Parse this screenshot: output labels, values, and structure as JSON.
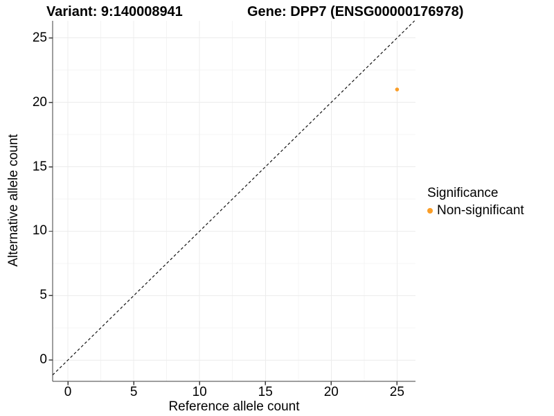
{
  "chart_data": {
    "type": "scatter",
    "title_left": "Variant: 9:140008941",
    "title_right": "Gene: DPP7 (ENSG00000176978)",
    "xlabel": "Reference allele count",
    "ylabel": "Alternative allele count",
    "xlim": [
      -1.16,
      26.4
    ],
    "ylim": [
      -1.65,
      26.33
    ],
    "x_ticks": [
      0,
      5,
      10,
      15,
      20,
      25
    ],
    "y_ticks": [
      0,
      5,
      10,
      15,
      20,
      25
    ],
    "grid": "major+minor",
    "reference_line": {
      "type": "identity",
      "equation": "y = x",
      "style": "dashed",
      "color": "#111111"
    },
    "points": [
      {
        "x": 25,
        "y": 21,
        "series": "Non-significant"
      }
    ],
    "legend": {
      "title": "Significance",
      "position": "right",
      "items": [
        {
          "label": "Non-significant",
          "color": "#FA9E28"
        }
      ]
    },
    "colors": {
      "point": "#FA9E28",
      "grid_major": "#ECECEC",
      "grid_minor": "#F4F4F4",
      "axis_line": "#3C3C3C",
      "text": "#000000"
    }
  }
}
